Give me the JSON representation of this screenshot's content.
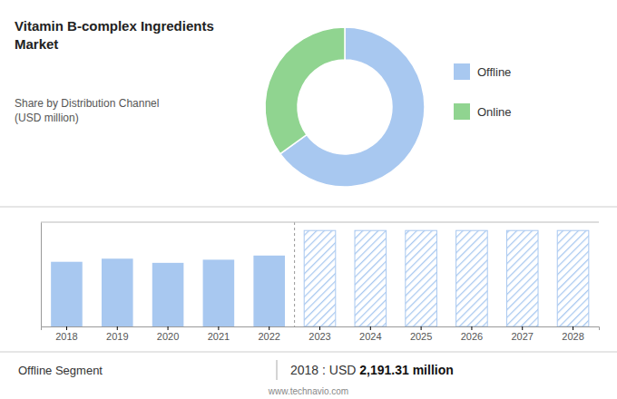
{
  "chart_data": [
    {
      "type": "pie",
      "title": "Vitamin B-complex Ingredients\nMarket",
      "subtitle": "Share by Distribution Channel\n(USD million)",
      "categories": [
        "Offline",
        "Online"
      ],
      "values": [
        65,
        35
      ],
      "colors": [
        "#a8c8f0",
        "#90d490"
      ],
      "legend": "right",
      "annotations": [
        "Offline Segment",
        "2018 : USD ",
        "2,191.31 million",
        "www.technavio.com"
      ]
    },
    {
      "type": "bar",
      "categories": [
        "2018",
        "2019",
        "2020",
        "2021",
        "2022",
        "2023",
        "2024",
        "2025",
        "2026",
        "2027",
        "2028"
      ],
      "series": [
        {
          "color": "#a8c8f0",
          "values": [
            0.62,
            0.65,
            0.61,
            0.64,
            0.68,
            null,
            null,
            null,
            null,
            null,
            null
          ]
        },
        {
          "color": "#a8c8f0",
          "line_style": "hatched",
          "values": [
            null,
            null,
            null,
            null,
            null,
            0.92,
            0.92,
            0.92,
            0.92,
            0.92,
            0.92
          ]
        }
      ],
      "ylim": [
        0,
        1
      ],
      "yticks": [],
      "grid": false,
      "tick_labels": "x"
    }
  ]
}
